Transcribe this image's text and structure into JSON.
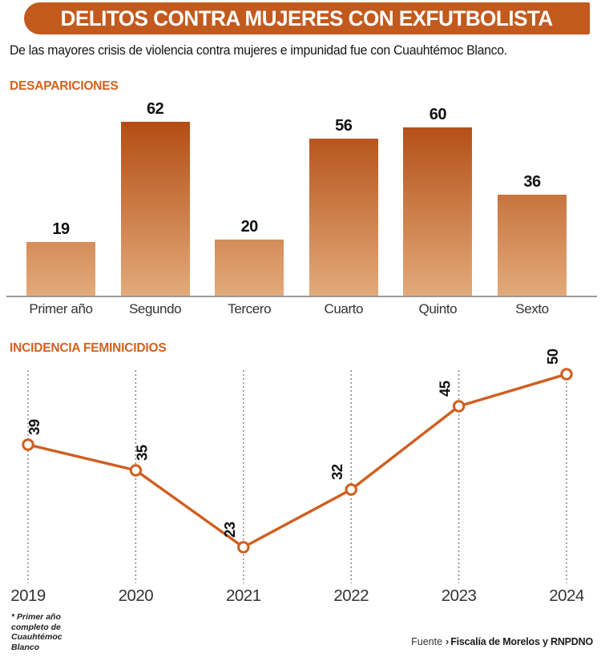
{
  "header": {
    "title": "DELITOS CONTRA MUJERES CON EXFUTBOLISTA"
  },
  "subtitle": "De las mayores crisis de violencia contra mujeres e impunidad fue con Cuauhtémoc Blanco.",
  "colors": {
    "banner_bg": "#C2591D",
    "banner_text": "#FFFFFF",
    "section_title": "#D4601E",
    "bar_gradient_top": "#B34D14",
    "bar_gradient_bottom": "#E3AA7A",
    "line_stroke": "#D05E1E",
    "marker_fill": "#FFFFFF",
    "gridline": "#777777",
    "axis_line": "#999999",
    "value_label_text": "#111111",
    "tick_text": "#333333"
  },
  "chart_data": [
    {
      "type": "bar",
      "title": "DESAPARICIONES",
      "categories": [
        "Primer año",
        "Segundo",
        "Tercero",
        "Cuarto",
        "Quinto",
        "Sexto"
      ],
      "values": [
        19,
        62,
        20,
        56,
        60,
        36
      ],
      "ylim": [
        0,
        62
      ],
      "grid": false,
      "value_labels": "above-bars",
      "bar_style": "shared-vertical-gradient"
    },
    {
      "type": "line",
      "title": "INCIDENCIA FEMINICIDIOS",
      "x": [
        "2019",
        "2020",
        "2021",
        "2022",
        "2023",
        "2024"
      ],
      "values": [
        39,
        35,
        23,
        32,
        45,
        50
      ],
      "ylim": [
        20,
        53
      ],
      "grid": "vertical-dotted",
      "marker": "open-circle",
      "value_labels": "rotated-90"
    }
  ],
  "footnote": {
    "lines": [
      "* Primer año",
      "completo de",
      "Cuauhtémoc",
      "Blanco"
    ]
  },
  "source": {
    "prefix": "Fuente",
    "arrow": "›",
    "text": "Fiscalía de Morelos y RNPDNO"
  }
}
